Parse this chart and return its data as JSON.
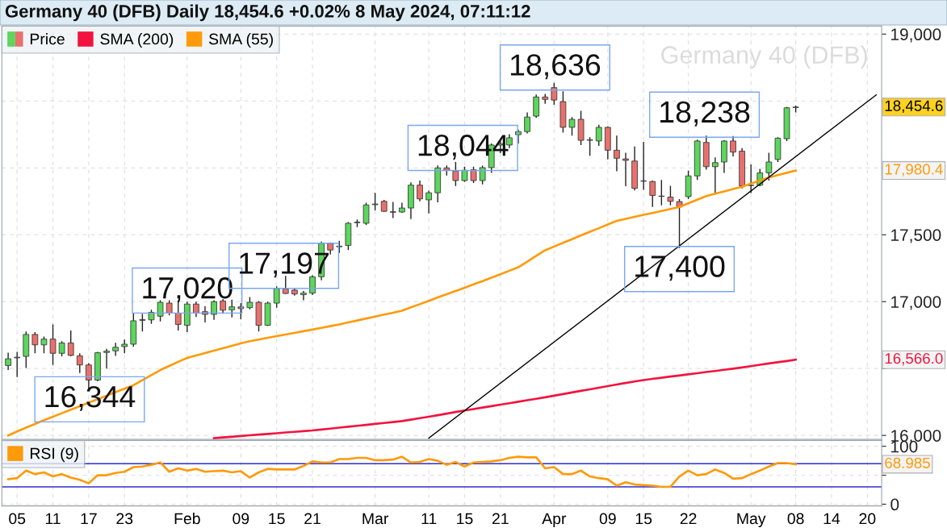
{
  "chart_data": [
    {
      "type": "candlestick",
      "title": "Germany 40 (DFB) Daily 18,454.6 +0.02% 8 May 2024, 07:11:12",
      "series": [
        {
          "name": "Price",
          "type": "candlestick",
          "ohlc": [
            [
              16523,
              16618,
              16489,
              16573
            ],
            [
              16580,
              16625,
              16436,
              16585
            ],
            [
              16591,
              16777,
              16504,
              16755
            ],
            [
              16755,
              16773,
              16614,
              16677
            ],
            [
              16677,
              16739,
              16614,
              16720
            ],
            [
              16720,
              16830,
              16527,
              16614
            ],
            [
              16614,
              16705,
              16591,
              16691
            ],
            [
              16691,
              16784,
              16591,
              16598
            ],
            [
              16595,
              16614,
              16466,
              16527
            ],
            [
              16527,
              16541,
              16344,
              16414
            ],
            [
              16414,
              16625,
              16405,
              16618
            ],
            [
              16620,
              16648,
              16500,
              16630
            ],
            [
              16632,
              16693,
              16595,
              16659
            ],
            [
              16664,
              16716,
              16614,
              16682
            ],
            [
              16682,
              16916,
              16664,
              16857
            ],
            [
              16860,
              16909,
              16777,
              16866
            ],
            [
              16864,
              16939,
              16834,
              16920
            ],
            [
              16891,
              17011,
              16852,
              16995
            ],
            [
              16989,
              17011,
              16898,
              16914
            ],
            [
              16914,
              17011,
              16784,
              16830
            ],
            [
              16823,
              17000,
              16773,
              16982
            ],
            [
              16982,
              17000,
              16886,
              16914
            ],
            [
              16925,
              16966,
              16845,
              16905
            ],
            [
              16905,
              17010,
              16864,
              17000
            ],
            [
              17005,
              17020,
              16909,
              16936
            ],
            [
              16939,
              17015,
              16882,
              16961
            ],
            [
              16961,
              16989,
              16868,
              16948
            ],
            [
              16955,
              17034,
              16943,
              16995
            ],
            [
              16995,
              17005,
              16777,
              16823
            ],
            [
              16823,
              17000,
              16818,
              16989
            ],
            [
              16989,
              17114,
              16955,
              17098
            ],
            [
              17095,
              17193,
              17057,
              17061
            ],
            [
              17086,
              17102,
              17045,
              17057
            ],
            [
              17052,
              17080,
              17011,
              17064
            ],
            [
              17064,
              17197,
              17050,
              17186
            ],
            [
              17186,
              17448,
              17159,
              17436
            ],
            [
              17436,
              17443,
              17352,
              17386
            ],
            [
              17410,
              17455,
              17364,
              17415
            ],
            [
              17420,
              17595,
              17386,
              17586
            ],
            [
              17590,
              17614,
              17557,
              17595
            ],
            [
              17586,
              17739,
              17573,
              17723
            ],
            [
              17725,
              17814,
              17682,
              17730
            ],
            [
              17750,
              17761,
              17670,
              17675
            ],
            [
              17672,
              17745,
              17625,
              17668
            ],
            [
              17670,
              17739,
              17664,
              17700
            ],
            [
              17700,
              17891,
              17618,
              17871
            ],
            [
              17871,
              17905,
              17750,
              17768
            ],
            [
              17761,
              17830,
              17659,
              17814
            ],
            [
              17814,
              18018,
              17743,
              18000
            ],
            [
              18000,
              18018,
              17943,
              17982
            ],
            [
              17977,
              18044,
              17864,
              17905
            ],
            [
              17905,
              18009,
              17894,
              17982
            ],
            [
              17986,
              18009,
              17887,
              17905
            ],
            [
              17905,
              18016,
              17877,
              18002
            ],
            [
              18002,
              18183,
              17963,
              18171
            ],
            [
              18170,
              18200,
              18110,
              18180
            ],
            [
              18171,
              18252,
              18148,
              18225
            ],
            [
              18248,
              18287,
              18183,
              18271
            ],
            [
              18271,
              18414,
              18257,
              18380
            ],
            [
              18387,
              18549,
              18373,
              18530
            ],
            [
              18530,
              18553,
              18479,
              18512
            ],
            [
              18600,
              18636,
              18472,
              18507
            ],
            [
              18495,
              18572,
              18264,
              18303
            ],
            [
              18303,
              18380,
              18241,
              18363
            ],
            [
              18363,
              18426,
              18171,
              18206
            ],
            [
              18210,
              18229,
              18090,
              18206
            ],
            [
              18201,
              18322,
              18164,
              18303
            ],
            [
              18303,
              18310,
              18063,
              18132
            ],
            [
              18132,
              18241,
              17975,
              18072
            ],
            [
              18067,
              18113,
              17863,
              18056
            ],
            [
              18051,
              18160,
              17831,
              17847
            ],
            [
              17900,
              18195,
              17836,
              17903
            ],
            [
              17898,
              17905,
              17708,
              17794
            ],
            [
              17789,
              17910,
              17720,
              17787
            ],
            [
              17782,
              17866,
              17720,
              17750
            ],
            [
              17748,
              17766,
              17400,
              17708
            ],
            [
              17785,
              17979,
              17766,
              17940
            ],
            [
              17940,
              18211,
              17910,
              18201
            ],
            [
              18190,
              18241,
              17986,
              18009
            ],
            [
              18009,
              18079,
              17801,
              18039
            ],
            [
              18044,
              18206,
              17963,
              18201
            ],
            [
              18201,
              18238,
              18086,
              18118
            ],
            [
              18125,
              18148,
              17847,
              17866
            ],
            [
              17868,
              18025,
              17812,
              17870
            ],
            [
              17870,
              17993,
              17863,
              17963
            ],
            [
              17963,
              18113,
              17905,
              18044
            ],
            [
              18063,
              18229,
              18044,
              18222
            ],
            [
              18218,
              18456,
              18201,
              18449
            ],
            [
              18451,
              18465,
              18414,
              18454.6
            ],
            null,
            null,
            null,
            null,
            null,
            null,
            null,
            null,
            null
          ],
          "colors": [
            "#5cd65c",
            "#5cd65c",
            "#5cd65c",
            "#e8716d",
            "#5cd65c",
            "#e8716d",
            "#5cd65c",
            "#e8716d",
            "#e8716d",
            "#e8716d",
            "#5cd65c",
            "#5cd65c",
            "#5cd65c",
            "#5cd65c",
            "#5cd65c",
            "#5cd65c",
            "#5cd65c",
            "#5cd65c",
            "#e8716d",
            "#e8716d",
            "#5cd65c",
            "#e8716d",
            "#e8716d",
            "#5cd65c",
            "#e8716d",
            "#5cd65c",
            "#e8716d",
            "#5cd65c",
            "#e8716d",
            "#5cd65c",
            "#5cd65c",
            "#e8716d",
            "#e8716d",
            "#5cd65c",
            "#5cd65c",
            "#5cd65c",
            "#e8716d",
            "#5cd65c",
            "#5cd65c",
            "#5cd65c",
            "#5cd65c",
            "#5cd65c",
            "#e8716d",
            "#e8716d",
            "#5cd65c",
            "#5cd65c",
            "#e8716d",
            "#5cd65c",
            "#5cd65c",
            "#e8716d",
            "#e8716d",
            "#5cd65c",
            "#e8716d",
            "#5cd65c",
            "#5cd65c",
            "#5cd65c",
            "#5cd65c",
            "#5cd65c",
            "#5cd65c",
            "#5cd65c",
            "#e8716d",
            "#e8716d",
            "#e8716d",
            "#5cd65c",
            "#e8716d",
            "#e8716d",
            "#5cd65c",
            "#e8716d",
            "#e8716d",
            "#e8716d",
            "#e8716d",
            "#5cd65c",
            "#e8716d",
            "#e8716d",
            "#e8716d",
            "#e8716d",
            "#5cd65c",
            "#5cd65c",
            "#e8716d",
            "#5cd65c",
            "#5cd65c",
            "#e8716d",
            "#e8716d",
            "#5cd65c",
            "#5cd65c",
            "#5cd65c",
            "#5cd65c",
            "#5cd65c",
            "#5cd65c",
            null,
            null,
            null,
            null,
            null,
            null,
            null,
            null,
            null
          ]
        },
        {
          "name": "SMA (200)",
          "type": "line",
          "color": "#f2143e",
          "values": [
            null,
            null,
            null,
            null,
            null,
            null,
            null,
            null,
            null,
            null,
            null,
            null,
            null,
            null,
            null,
            null,
            null,
            null,
            null,
            null,
            null,
            null,
            null,
            15980,
            15985,
            15990,
            15996,
            16001,
            16006,
            16011,
            16016,
            16022,
            16027,
            16032,
            16037,
            16044,
            16051,
            16058,
            16065,
            16072,
            16079,
            16086,
            16093,
            16100,
            16107,
            16118,
            16129,
            16140,
            16151,
            16163,
            16175,
            16186,
            16197,
            16208,
            16219,
            16230,
            16241,
            16252,
            16263,
            16274,
            16285,
            16297,
            16309,
            16321,
            16333,
            16345,
            16357,
            16369,
            16381,
            16392,
            16403,
            16414,
            16423,
            16431,
            16440,
            16448,
            16457,
            16465,
            16474,
            16482,
            16491,
            16499,
            16508,
            16518,
            16528,
            16538,
            16547,
            16556,
            16566,
            null,
            null,
            null,
            null,
            null,
            null,
            null,
            null,
            null
          ]
        },
        {
          "name": "SMA (55)",
          "type": "line",
          "color": "#ff9a0a",
          "values": [
            16000,
            16030,
            16058,
            16086,
            16114,
            16140,
            16166,
            16192,
            16218,
            16245,
            16271,
            16297,
            16323,
            16349,
            16375,
            16413,
            16451,
            16489,
            16519,
            16550,
            16580,
            16598,
            16616,
            16634,
            16652,
            16670,
            16688,
            16705,
            16717,
            16730,
            16742,
            16754,
            16766,
            16779,
            16791,
            16804,
            16817,
            16830,
            16845,
            16859,
            16874,
            16888,
            16903,
            16917,
            16932,
            16957,
            16981,
            17006,
            17031,
            17055,
            17080,
            17104,
            17129,
            17153,
            17179,
            17205,
            17231,
            17257,
            17299,
            17342,
            17384,
            17412,
            17440,
            17467,
            17495,
            17522,
            17549,
            17577,
            17604,
            17619,
            17634,
            17649,
            17663,
            17678,
            17693,
            17708,
            17735,
            17762,
            17789,
            17807,
            17824,
            17842,
            17859,
            17882,
            17905,
            17928,
            17946,
            17963,
            17980,
            null,
            null,
            null,
            null,
            null,
            null,
            null,
            null,
            null
          ]
        },
        {
          "type": "line",
          "color": "#000000",
          "values": [
            null,
            null,
            null,
            null,
            null,
            null,
            null,
            null,
            null,
            null,
            null,
            null,
            null,
            null,
            null,
            null,
            null,
            null,
            null,
            null,
            null,
            null,
            null,
            null,
            null,
            null,
            null,
            null,
            null,
            null,
            null,
            null,
            null,
            null,
            null,
            null,
            null,
            null,
            null,
            null,
            null,
            null,
            null,
            null,
            null,
            null,
            null,
            15980,
            null,
            null,
            null,
            null,
            null,
            null,
            null,
            null,
            null,
            null,
            null,
            null,
            null,
            null,
            null,
            null,
            null,
            null,
            null,
            null,
            null,
            null,
            null,
            null,
            null,
            null,
            null,
            null,
            null,
            null,
            null,
            null,
            null,
            null,
            null,
            null,
            null,
            null,
            null,
            null,
            null,
            null,
            null,
            null,
            null,
            null,
            null,
            null,
            null,
            18546
          ]
        }
      ],
      "ylim": [
        15970,
        19060
      ],
      "yticks": [
        {
          "value": 16000,
          "label": "16,000"
        },
        {
          "value": 16500,
          "label": null
        },
        {
          "value": 17000,
          "label": "17,000"
        },
        {
          "value": 17500,
          "label": "17,500"
        },
        {
          "value": 18000,
          "label": null
        },
        {
          "value": 18500,
          "label": null
        },
        {
          "value": 19000,
          "label": "19,000"
        }
      ],
      "tick_labels": "y",
      "grid": true,
      "legend": "top left",
      "annotations": [
        "Germany 40 (DFB)",
        "16,344",
        "17,020",
        "17,197",
        "18,044",
        "18,636",
        "18,238",
        "17,400",
        "18,454.6",
        "17,980.4",
        "16,566.0"
      ]
    },
    {
      "type": "line",
      "categories": [
        null,
        "05",
        null,
        null,
        null,
        "11",
        null,
        null,
        null,
        "17",
        null,
        null,
        null,
        "23",
        null,
        null,
        null,
        null,
        null,
        null,
        "Feb",
        null,
        null,
        null,
        null,
        null,
        "09",
        null,
        null,
        null,
        "15",
        null,
        null,
        null,
        "21",
        null,
        null,
        null,
        null,
        null,
        null,
        "Mar",
        null,
        null,
        null,
        null,
        null,
        "11",
        null,
        null,
        null,
        "15",
        null,
        null,
        null,
        "21",
        null,
        null,
        null,
        null,
        null,
        "Apr",
        null,
        null,
        null,
        null,
        null,
        "09",
        null,
        null,
        null,
        "15",
        null,
        null,
        null,
        null,
        "22",
        null,
        null,
        null,
        null,
        null,
        null,
        "May",
        null,
        null,
        null,
        null,
        "08",
        null,
        null,
        null,
        "14",
        null,
        null,
        null,
        "20",
        null
      ],
      "series": [
        {
          "name": "RSI (9)",
          "color": "#ff9a0a",
          "values": [
            43,
            45,
            58,
            52,
            55,
            48,
            52,
            46,
            42,
            36,
            50,
            50,
            54,
            56,
            64,
            65,
            68,
            72,
            56,
            62,
            58,
            61,
            56,
            57,
            58,
            55,
            57,
            46,
            55,
            61,
            60,
            60,
            60,
            66,
            74,
            72,
            72,
            78,
            78,
            80,
            80,
            76,
            76,
            77,
            82,
            72,
            73,
            78,
            75,
            68,
            73,
            65,
            72,
            73,
            74,
            76,
            80,
            82,
            81,
            81,
            62,
            64,
            52,
            52,
            58,
            48,
            45,
            43,
            32,
            38,
            34,
            33,
            32,
            30,
            30,
            48,
            58,
            50,
            52,
            60,
            54,
            44,
            45,
            52,
            58,
            65,
            71,
            71,
            69,
            null,
            null,
            null,
            null,
            null,
            null,
            null,
            null,
            null
          ]
        }
      ],
      "ylim": [
        -3,
        110
      ],
      "yticks": [
        0,
        {
          "value": 50,
          "label": null
        },
        100
      ],
      "grid": true,
      "legend": "top left",
      "ref_lines": [
        {
          "axis": "y",
          "value": 70,
          "color": "#2e2ecf"
        },
        {
          "axis": "y",
          "value": 30,
          "color": "#2e2ecf"
        }
      ],
      "annotations": [
        "68.985"
      ]
    }
  ]
}
